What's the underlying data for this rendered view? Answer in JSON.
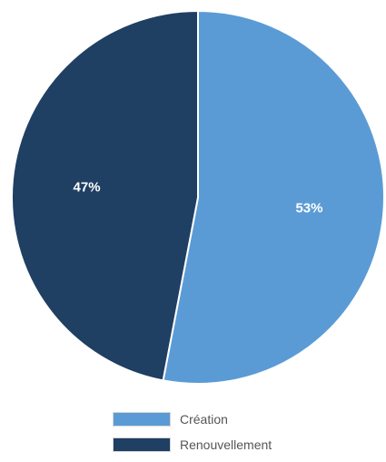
{
  "chart_data": {
    "type": "pie",
    "slices": [
      {
        "label": "Création",
        "value": 53,
        "display": "53%",
        "color": "#5b9bd5"
      },
      {
        "label": "Renouvellement",
        "value": 47,
        "display": "47%",
        "color": "#1f3f63"
      }
    ],
    "legend_position": "bottom"
  }
}
